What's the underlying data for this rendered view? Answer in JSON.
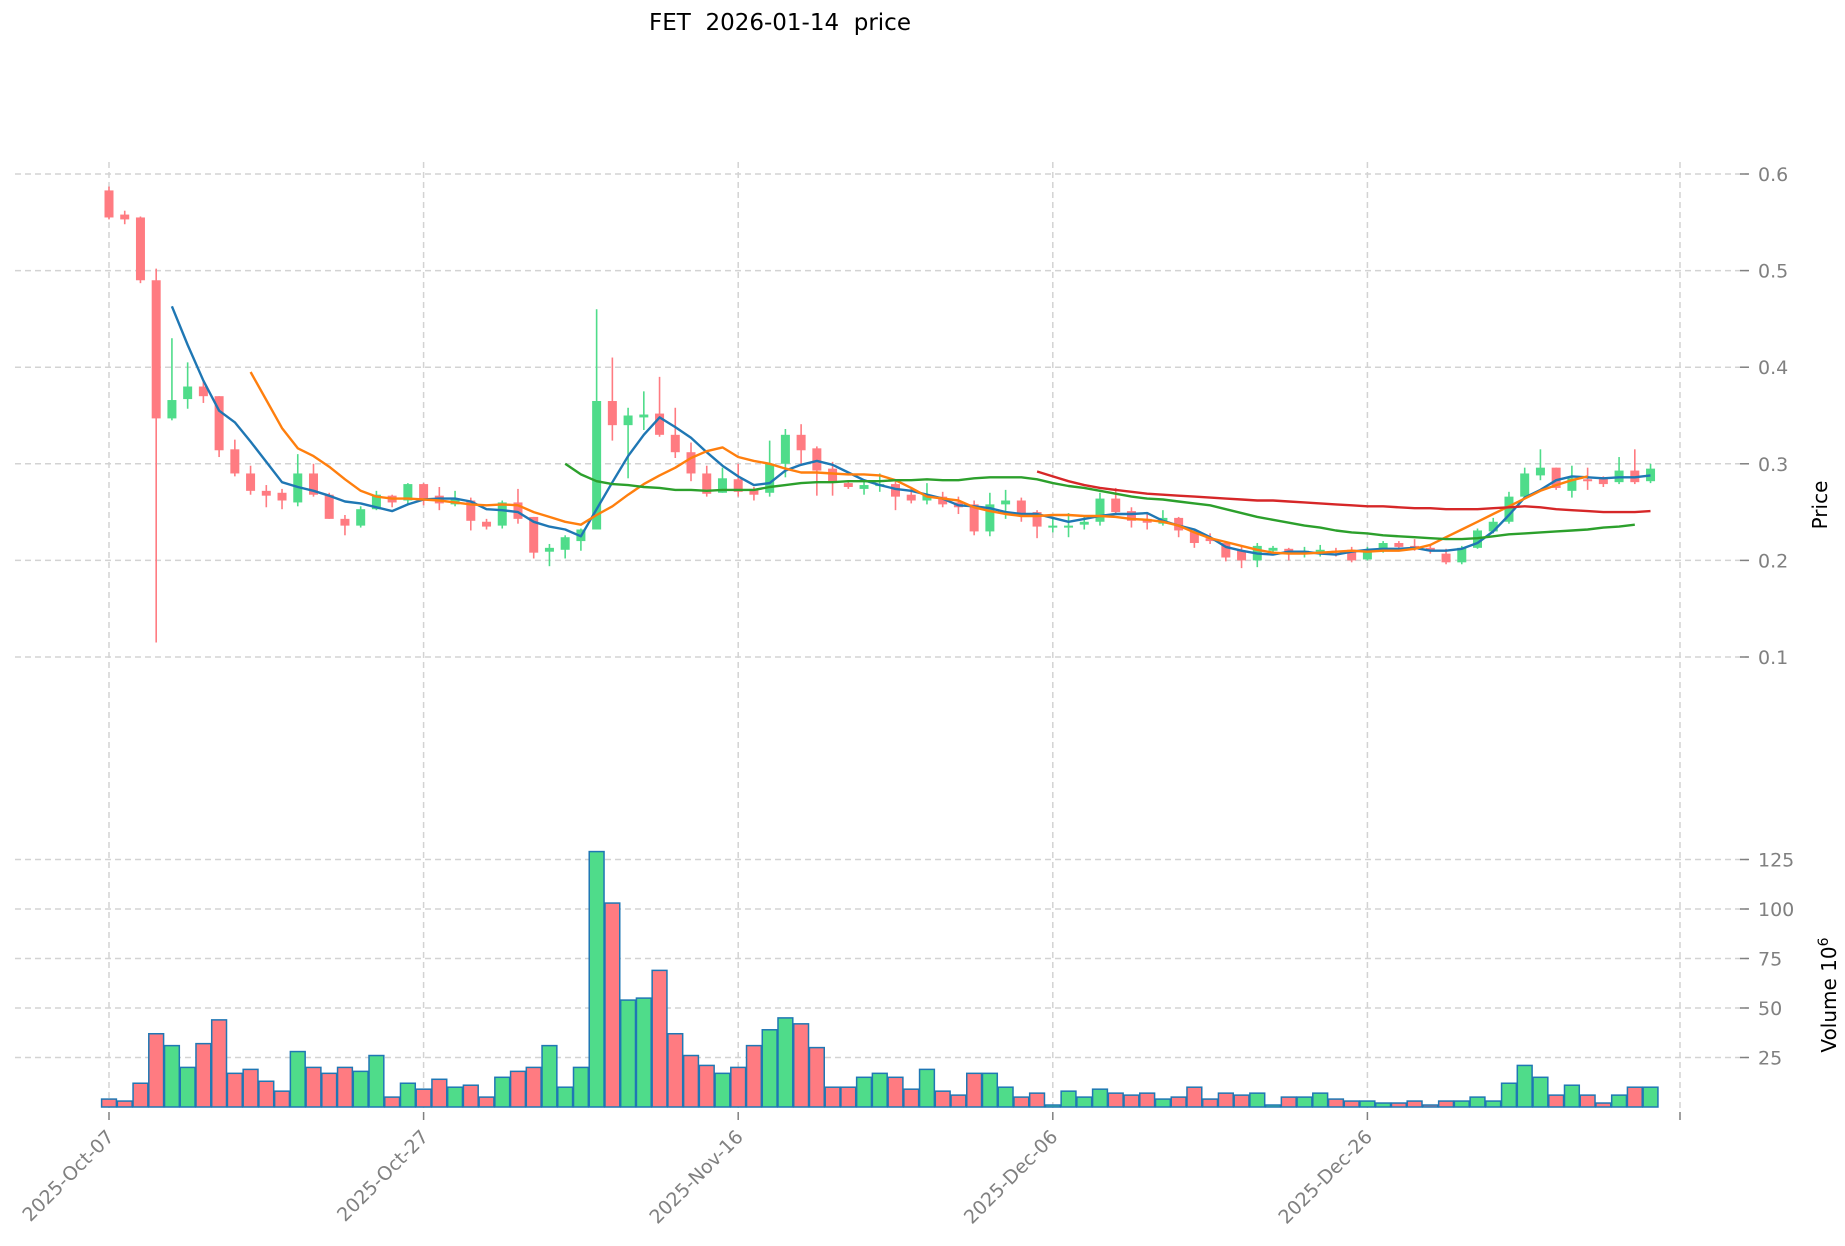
{
  "title": {
    "symbol": "FET",
    "date": "2026-01-14",
    "kind": "price"
  },
  "colors": {
    "up": "#4ade80",
    "down": "#f87171",
    "up_fill": "#4fdc8a",
    "down_fill": "#ff7b81",
    "volume_edge": "#1f77b4",
    "grid": "#d3d3d3",
    "tick": "#808080",
    "ma_blue": "#1f77b4",
    "ma_orange": "#ff7f0e",
    "ma_green": "#2ca02c",
    "ma_red": "#d62728"
  },
  "axes": {
    "price": {
      "label": "Price",
      "ticks": [
        "0.1",
        "0.2",
        "0.3",
        "0.4",
        "0.5",
        "0.6"
      ]
    },
    "volume": {
      "label": "Volume  10",
      "exponent": "6",
      "ticks": [
        "25",
        "50",
        "75",
        "100",
        "125"
      ]
    },
    "x": {
      "ticks": [
        "2025-Oct-07",
        "2025-Oct-27",
        "2025-Nov-16",
        "2025-Dec-06",
        "2025-Dec-26"
      ]
    }
  },
  "chart_data": {
    "type": "candlestick",
    "title": "FET  2026-01-14  price",
    "xlabel": "",
    "ylabel": "Price",
    "ylabel_secondary": "Volume 10^6",
    "ylim": [
      0.09,
      0.61
    ],
    "volume_ylim": [
      0,
      130
    ],
    "grid": true,
    "start_date": "2025-10-07",
    "x_tick_labels": [
      "2025-Oct-07",
      "2025-Oct-27",
      "2025-Nov-16",
      "2025-Dec-06",
      "2025-Dec-26"
    ],
    "ohlc": [
      [
        0.583,
        0.587,
        0.553,
        0.555
      ],
      [
        0.558,
        0.562,
        0.548,
        0.553
      ],
      [
        0.555,
        0.556,
        0.487,
        0.49
      ],
      [
        0.49,
        0.502,
        0.115,
        0.347
      ],
      [
        0.347,
        0.43,
        0.345,
        0.366
      ],
      [
        0.367,
        0.405,
        0.357,
        0.38
      ],
      [
        0.38,
        0.385,
        0.363,
        0.37
      ],
      [
        0.37,
        0.37,
        0.307,
        0.314
      ],
      [
        0.315,
        0.325,
        0.287,
        0.29
      ],
      [
        0.29,
        0.298,
        0.268,
        0.272
      ],
      [
        0.272,
        0.278,
        0.255,
        0.267
      ],
      [
        0.27,
        0.274,
        0.253,
        0.262
      ],
      [
        0.26,
        0.31,
        0.256,
        0.29
      ],
      [
        0.29,
        0.3,
        0.266,
        0.268
      ],
      [
        0.268,
        0.27,
        0.243,
        0.243
      ],
      [
        0.243,
        0.247,
        0.226,
        0.236
      ],
      [
        0.236,
        0.256,
        0.234,
        0.253
      ],
      [
        0.253,
        0.272,
        0.252,
        0.268
      ],
      [
        0.267,
        0.268,
        0.255,
        0.26
      ],
      [
        0.262,
        0.28,
        0.257,
        0.279
      ],
      [
        0.279,
        0.28,
        0.257,
        0.263
      ],
      [
        0.267,
        0.276,
        0.252,
        0.259
      ],
      [
        0.258,
        0.272,
        0.256,
        0.263
      ],
      [
        0.262,
        0.265,
        0.231,
        0.241
      ],
      [
        0.24,
        0.243,
        0.232,
        0.235
      ],
      [
        0.236,
        0.262,
        0.233,
        0.26
      ],
      [
        0.26,
        0.274,
        0.238,
        0.243
      ],
      [
        0.245,
        0.245,
        0.202,
        0.208
      ],
      [
        0.209,
        0.217,
        0.194,
        0.213
      ],
      [
        0.211,
        0.226,
        0.202,
        0.224
      ],
      [
        0.22,
        0.233,
        0.21,
        0.232
      ],
      [
        0.232,
        0.46,
        0.232,
        0.365
      ],
      [
        0.365,
        0.41,
        0.324,
        0.34
      ],
      [
        0.34,
        0.358,
        0.285,
        0.35
      ],
      [
        0.348,
        0.375,
        0.335,
        0.351
      ],
      [
        0.352,
        0.39,
        0.328,
        0.33
      ],
      [
        0.33,
        0.358,
        0.306,
        0.312
      ],
      [
        0.312,
        0.322,
        0.282,
        0.29
      ],
      [
        0.29,
        0.298,
        0.266,
        0.269
      ],
      [
        0.27,
        0.296,
        0.27,
        0.285
      ],
      [
        0.284,
        0.3,
        0.266,
        0.271
      ],
      [
        0.274,
        0.276,
        0.262,
        0.268
      ],
      [
        0.27,
        0.324,
        0.266,
        0.3
      ],
      [
        0.3,
        0.336,
        0.286,
        0.33
      ],
      [
        0.33,
        0.341,
        0.3,
        0.314
      ],
      [
        0.316,
        0.318,
        0.267,
        0.293
      ],
      [
        0.295,
        0.302,
        0.267,
        0.281
      ],
      [
        0.28,
        0.283,
        0.274,
        0.276
      ],
      [
        0.274,
        0.283,
        0.268,
        0.278
      ],
      [
        0.277,
        0.29,
        0.271,
        0.279
      ],
      [
        0.279,
        0.282,
        0.252,
        0.266
      ],
      [
        0.268,
        0.274,
        0.259,
        0.262
      ],
      [
        0.262,
        0.28,
        0.258,
        0.268
      ],
      [
        0.266,
        0.271,
        0.255,
        0.258
      ],
      [
        0.26,
        0.266,
        0.248,
        0.255
      ],
      [
        0.258,
        0.262,
        0.226,
        0.23
      ],
      [
        0.23,
        0.27,
        0.225,
        0.258
      ],
      [
        0.258,
        0.273,
        0.243,
        0.262
      ],
      [
        0.262,
        0.265,
        0.24,
        0.246
      ],
      [
        0.25,
        0.252,
        0.223,
        0.235
      ],
      [
        0.235,
        0.244,
        0.229,
        0.236
      ],
      [
        0.235,
        0.249,
        0.224,
        0.236
      ],
      [
        0.237,
        0.247,
        0.232,
        0.24
      ],
      [
        0.24,
        0.27,
        0.236,
        0.264
      ],
      [
        0.264,
        0.275,
        0.248,
        0.25
      ],
      [
        0.251,
        0.255,
        0.234,
        0.241
      ],
      [
        0.243,
        0.248,
        0.232,
        0.239
      ],
      [
        0.238,
        0.252,
        0.236,
        0.244
      ],
      [
        0.244,
        0.245,
        0.224,
        0.231
      ],
      [
        0.23,
        0.232,
        0.213,
        0.218
      ],
      [
        0.223,
        0.228,
        0.217,
        0.22
      ],
      [
        0.218,
        0.22,
        0.199,
        0.203
      ],
      [
        0.21,
        0.215,
        0.192,
        0.2
      ],
      [
        0.2,
        0.218,
        0.193,
        0.215
      ],
      [
        0.21,
        0.215,
        0.207,
        0.213
      ],
      [
        0.212,
        0.213,
        0.2,
        0.207
      ],
      [
        0.207,
        0.214,
        0.203,
        0.21
      ],
      [
        0.209,
        0.216,
        0.204,
        0.211
      ],
      [
        0.21,
        0.213,
        0.204,
        0.208
      ],
      [
        0.211,
        0.214,
        0.198,
        0.2
      ],
      [
        0.201,
        0.214,
        0.2,
        0.21
      ],
      [
        0.21,
        0.22,
        0.208,
        0.218
      ],
      [
        0.218,
        0.22,
        0.212,
        0.214
      ],
      [
        0.215,
        0.222,
        0.21,
        0.212
      ],
      [
        0.213,
        0.216,
        0.207,
        0.21
      ],
      [
        0.207,
        0.212,
        0.196,
        0.198
      ],
      [
        0.198,
        0.215,
        0.196,
        0.213
      ],
      [
        0.213,
        0.233,
        0.212,
        0.231
      ],
      [
        0.23,
        0.244,
        0.228,
        0.24
      ],
      [
        0.24,
        0.271,
        0.238,
        0.266
      ],
      [
        0.266,
        0.296,
        0.264,
        0.29
      ],
      [
        0.288,
        0.315,
        0.283,
        0.296
      ],
      [
        0.296,
        0.296,
        0.273,
        0.275
      ],
      [
        0.272,
        0.298,
        0.265,
        0.285
      ],
      [
        0.284,
        0.296,
        0.273,
        0.283
      ],
      [
        0.285,
        0.287,
        0.276,
        0.279
      ],
      [
        0.281,
        0.307,
        0.279,
        0.293
      ],
      [
        0.293,
        0.315,
        0.279,
        0.281
      ],
      [
        0.282,
        0.3,
        0.28,
        0.295
      ]
    ],
    "volume": [
      4,
      3,
      12,
      37,
      31,
      20,
      32,
      44,
      17,
      19,
      13,
      8,
      28,
      20,
      17,
      20,
      18,
      26,
      5,
      12,
      9,
      14,
      10,
      11,
      5,
      15,
      18,
      20,
      31,
      10,
      20,
      129,
      103,
      54,
      55,
      69,
      37,
      26,
      21,
      17,
      20,
      31,
      39,
      45,
      42,
      30,
      10,
      10,
      15,
      17,
      15,
      9,
      19,
      8,
      6,
      17,
      17,
      10,
      5,
      7,
      1,
      8,
      5,
      9,
      7,
      6,
      7,
      4,
      5,
      10,
      4,
      7,
      6,
      7,
      1,
      5,
      5,
      7,
      4,
      3,
      3,
      2,
      2,
      3,
      1,
      3,
      3,
      5,
      3,
      12,
      21,
      15,
      6,
      11,
      6,
      2,
      6,
      10,
      10
    ],
    "moving_averages": [
      {
        "name": "MA-blue",
        "color": "#1f77b4",
        "start_index": 4,
        "values": [
          0.463,
          0.423,
          0.386,
          0.355,
          0.343,
          0.323,
          0.302,
          0.281,
          0.276,
          0.272,
          0.267,
          0.261,
          0.259,
          0.255,
          0.251,
          0.258,
          0.263,
          0.264,
          0.264,
          0.261,
          0.253,
          0.252,
          0.25,
          0.24,
          0.235,
          0.232,
          0.225,
          0.253,
          0.281,
          0.308,
          0.33,
          0.348,
          0.338,
          0.327,
          0.312,
          0.298,
          0.287,
          0.278,
          0.28,
          0.293,
          0.299,
          0.303,
          0.299,
          0.291,
          0.283,
          0.278,
          0.274,
          0.272,
          0.268,
          0.264,
          0.257,
          0.256,
          0.254,
          0.25,
          0.248,
          0.248,
          0.244,
          0.24,
          0.243,
          0.246,
          0.248,
          0.248,
          0.249,
          0.241,
          0.236,
          0.232,
          0.224,
          0.214,
          0.21,
          0.207,
          0.206,
          0.209,
          0.209,
          0.207,
          0.206,
          0.209,
          0.211,
          0.212,
          0.212,
          0.213,
          0.21,
          0.21,
          0.212,
          0.218,
          0.23,
          0.247,
          0.265,
          0.273,
          0.283,
          0.287,
          0.286,
          0.285,
          0.286,
          0.286,
          0.288
        ]
      },
      {
        "name": "MA-orange",
        "color": "#ff7f0e",
        "start_index": 9,
        "values": [
          0.395,
          0.366,
          0.337,
          0.316,
          0.308,
          0.297,
          0.284,
          0.272,
          0.266,
          0.264,
          0.264,
          0.263,
          0.262,
          0.26,
          0.258,
          0.257,
          0.258,
          0.257,
          0.25,
          0.245,
          0.24,
          0.237,
          0.247,
          0.256,
          0.268,
          0.279,
          0.288,
          0.296,
          0.306,
          0.313,
          0.317,
          0.307,
          0.303,
          0.3,
          0.295,
          0.291,
          0.291,
          0.29,
          0.289,
          0.289,
          0.288,
          0.283,
          0.275,
          0.266,
          0.264,
          0.262,
          0.255,
          0.251,
          0.248,
          0.246,
          0.246,
          0.247,
          0.247,
          0.246,
          0.246,
          0.245,
          0.243,
          0.242,
          0.24,
          0.236,
          0.229,
          0.223,
          0.219,
          0.215,
          0.211,
          0.208,
          0.207,
          0.207,
          0.208,
          0.209,
          0.21,
          0.209,
          0.21,
          0.21,
          0.212,
          0.216,
          0.224,
          0.232,
          0.24,
          0.248,
          0.256,
          0.264,
          0.272,
          0.278,
          0.283,
          0.287
        ]
      },
      {
        "name": "MA-green",
        "color": "#2ca02c",
        "start_index": 29,
        "values": [
          0.3,
          0.289,
          0.282,
          0.279,
          0.278,
          0.276,
          0.275,
          0.273,
          0.273,
          0.272,
          0.273,
          0.273,
          0.273,
          0.276,
          0.278,
          0.28,
          0.281,
          0.281,
          0.282,
          0.282,
          0.282,
          0.283,
          0.283,
          0.284,
          0.283,
          0.283,
          0.285,
          0.286,
          0.286,
          0.286,
          0.284,
          0.28,
          0.277,
          0.275,
          0.272,
          0.269,
          0.266,
          0.264,
          0.263,
          0.261,
          0.259,
          0.257,
          0.253,
          0.249,
          0.245,
          0.242,
          0.239,
          0.236,
          0.234,
          0.231,
          0.229,
          0.228,
          0.226,
          0.225,
          0.224,
          0.223,
          0.222,
          0.222,
          0.223,
          0.225,
          0.227,
          0.228,
          0.229,
          0.23,
          0.231,
          0.232,
          0.234,
          0.235,
          0.237
        ]
      },
      {
        "name": "MA-red",
        "color": "#d62728",
        "start_index": 59,
        "values": [
          0.292,
          0.287,
          0.282,
          0.278,
          0.275,
          0.273,
          0.271,
          0.269,
          0.268,
          0.267,
          0.266,
          0.265,
          0.264,
          0.263,
          0.262,
          0.262,
          0.261,
          0.26,
          0.259,
          0.258,
          0.257,
          0.256,
          0.256,
          0.255,
          0.254,
          0.254,
          0.253,
          0.253,
          0.253,
          0.254,
          0.255,
          0.256,
          0.255,
          0.253,
          0.252,
          0.251,
          0.25,
          0.25,
          0.25,
          0.251
        ]
      }
    ]
  }
}
